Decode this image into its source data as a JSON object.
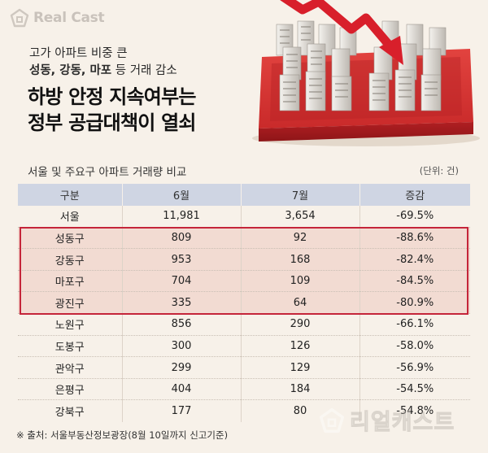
{
  "brand": {
    "logo_text": "Real Cast",
    "watermark_text": "리얼캐스트"
  },
  "header": {
    "subtitle_line1": "고가 아파트 비중 큰",
    "subtitle_line2_bold": "성동, 강동, 마포",
    "subtitle_line2_rest": " 등 거래 감소",
    "title_line1": "하방 안정 지속여부는",
    "title_line2": "정부 공급대책이 열쇠"
  },
  "table": {
    "title": "서울 및 주요구 아파트 거래량 비교",
    "unit": "(단위: 건)",
    "columns": [
      "구분",
      "6월",
      "7월",
      "증감"
    ],
    "rows": [
      {
        "district": "서울",
        "june": "11,981",
        "july": "3,654",
        "change": "-69.5%",
        "highlight": false
      },
      {
        "district": "성동구",
        "june": "809",
        "july": "92",
        "change": "-88.6%",
        "highlight": true
      },
      {
        "district": "강동구",
        "june": "953",
        "july": "168",
        "change": "-82.4%",
        "highlight": true
      },
      {
        "district": "마포구",
        "june": "704",
        "july": "109",
        "change": "-84.5%",
        "highlight": true
      },
      {
        "district": "광진구",
        "june": "335",
        "july": "64",
        "change": "-80.9%",
        "highlight": true
      },
      {
        "district": "노원구",
        "june": "856",
        "july": "290",
        "change": "-66.1%",
        "highlight": false
      },
      {
        "district": "도봉구",
        "june": "300",
        "july": "126",
        "change": "-58.0%",
        "highlight": false
      },
      {
        "district": "관악구",
        "june": "299",
        "july": "129",
        "change": "-56.9%",
        "highlight": false
      },
      {
        "district": "은평구",
        "june": "404",
        "july": "184",
        "change": "-54.5%",
        "highlight": false
      },
      {
        "district": "강북구",
        "june": "177",
        "july": "80",
        "change": "-54.8%",
        "highlight": false
      }
    ]
  },
  "source": "※ 출처: 서울부동산정보광장(8월 10일까지 신고기준)",
  "colors": {
    "background": "#f7f1e9",
    "header_row": "#cfd5e3",
    "highlight_fill": "#f2dbd2",
    "highlight_border": "#c5253a",
    "arrow_red": "#d81f2b"
  }
}
